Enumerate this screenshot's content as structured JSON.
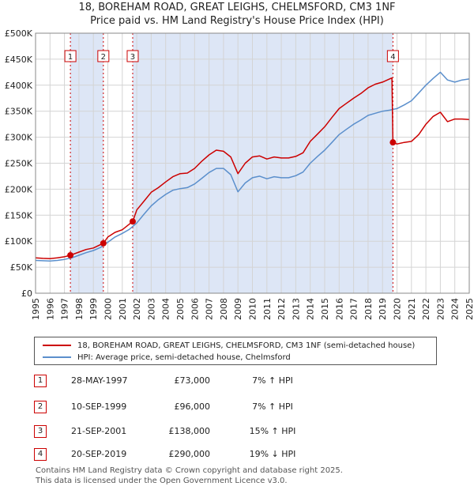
{
  "header": {
    "title": "18, BOREHAM ROAD, GREAT LEIGHS, CHELMSFORD, CM3 1NF",
    "subtitle": "Price paid vs. HM Land Registry's House Price Index (HPI)"
  },
  "colors": {
    "property": "#cc0000",
    "hpi": "#5b8fcc",
    "band": "#dde6f6",
    "grid": "#d4d4d4"
  },
  "chart_data": {
    "type": "line",
    "xlim": [
      1995,
      2025
    ],
    "ylim": [
      0,
      500000
    ],
    "ytick_values": [
      0,
      50000,
      100000,
      150000,
      200000,
      250000,
      300000,
      350000,
      400000,
      450000,
      500000
    ],
    "ytick_labels": [
      "£0",
      "£50K",
      "£100K",
      "£150K",
      "£200K",
      "£250K",
      "£300K",
      "£350K",
      "£400K",
      "£450K",
      "£500K"
    ],
    "xtick_labels": [
      "1995",
      "1996",
      "1997",
      "1998",
      "1999",
      "2000",
      "2001",
      "2002",
      "2003",
      "2004",
      "2005",
      "2006",
      "2007",
      "2008",
      "2009",
      "2010",
      "2011",
      "2012",
      "2013",
      "2014",
      "2015",
      "2016",
      "2017",
      "2018",
      "2019",
      "2020",
      "2021",
      "2022",
      "2023",
      "2024",
      "2025"
    ],
    "shaded_ranges": [
      [
        1997.41,
        1999.69
      ],
      [
        2001.72,
        2019.72
      ]
    ],
    "series": [
      {
        "name": "18, BOREHAM ROAD, GREAT LEIGHS, CHELMSFORD, CM3 1NF (semi-detached house)",
        "x": [
          1995,
          1995.5,
          1996,
          1996.5,
          1997,
          1997.41,
          1998,
          1998.5,
          1999,
          1999.69,
          2000,
          2000.5,
          2001,
          2001.72,
          2002,
          2002.5,
          2003,
          2003.5,
          2004,
          2004.5,
          2005,
          2005.5,
          2006,
          2006.5,
          2007,
          2007.5,
          2008,
          2008.5,
          2009,
          2009.5,
          2010,
          2010.5,
          2011,
          2011.5,
          2012,
          2012.5,
          2013,
          2013.5,
          2014,
          2014.5,
          2015,
          2015.5,
          2016,
          2016.5,
          2017,
          2017.5,
          2018,
          2018.5,
          2019,
          2019.65,
          2019.72,
          2020,
          2020.5,
          2021,
          2021.5,
          2022,
          2022.5,
          2023,
          2023.5,
          2024,
          2024.5,
          2025
        ],
        "values": [
          68000,
          67000,
          66500,
          68000,
          70000,
          73000,
          79000,
          84000,
          87000,
          96000,
          108000,
          117000,
          122000,
          138000,
          160000,
          177000,
          194000,
          203000,
          214000,
          224000,
          230000,
          231000,
          240000,
          254000,
          266000,
          275000,
          273000,
          262000,
          230000,
          250000,
          262000,
          264000,
          258000,
          262000,
          260000,
          260000,
          263000,
          270000,
          292000,
          306000,
          320000,
          338000,
          355000,
          365000,
          375000,
          384000,
          395000,
          402000,
          406000,
          414000,
          290000,
          287000,
          290000,
          292000,
          305000,
          325000,
          340000,
          348000,
          330000,
          335000,
          335000,
          334000
        ]
      },
      {
        "name": "HPI: Average price, semi-detached house, Chelmsford",
        "x": [
          1995,
          1995.5,
          1996,
          1996.5,
          1997,
          1997.5,
          1998,
          1998.5,
          1999,
          1999.5,
          2000,
          2000.5,
          2001,
          2001.5,
          2002,
          2002.5,
          2003,
          2003.5,
          2004,
          2004.5,
          2005,
          2005.5,
          2006,
          2006.5,
          2007,
          2007.5,
          2008,
          2008.5,
          2009,
          2009.5,
          2010,
          2010.5,
          2011,
          2011.5,
          2012,
          2012.5,
          2013,
          2013.5,
          2014,
          2014.5,
          2015,
          2015.5,
          2016,
          2016.5,
          2017,
          2017.5,
          2018,
          2018.5,
          2019,
          2019.5,
          2020,
          2020.5,
          2021,
          2021.5,
          2022,
          2022.5,
          2023,
          2023.5,
          2024,
          2024.5,
          2025
        ],
        "values": [
          63000,
          62500,
          62000,
          63000,
          65000,
          68000,
          73000,
          78000,
          82000,
          88000,
          98000,
          108000,
          115000,
          123000,
          135000,
          152000,
          168000,
          180000,
          190000,
          198000,
          201000,
          203000,
          210000,
          221000,
          232000,
          240000,
          240000,
          228000,
          195000,
          212000,
          222000,
          225000,
          220000,
          224000,
          222000,
          222000,
          226000,
          233000,
          250000,
          263000,
          275000,
          290000,
          305000,
          315000,
          325000,
          333000,
          342000,
          346000,
          350000,
          352000,
          355000,
          362000,
          370000,
          385000,
          400000,
          413000,
          425000,
          410000,
          406000,
          410000,
          412000
        ]
      }
    ],
    "sale_markers": [
      {
        "id": "1",
        "x": 1997.41,
        "value": 73000
      },
      {
        "id": "2",
        "x": 1999.69,
        "value": 96000
      },
      {
        "id": "3",
        "x": 2001.72,
        "value": 138000
      },
      {
        "id": "4",
        "x": 2019.72,
        "value": 290000
      }
    ]
  },
  "legend": {
    "property_label": "18, BOREHAM ROAD, GREAT LEIGHS, CHELMSFORD, CM3 1NF (semi-detached house)",
    "hpi_label": "HPI: Average price, semi-detached house, Chelmsford"
  },
  "transactions": [
    {
      "id": "1",
      "date": "28-MAY-1997",
      "price": "£73,000",
      "change": "7% ↑ HPI"
    },
    {
      "id": "2",
      "date": "10-SEP-1999",
      "price": "£96,000",
      "change": "7% ↑ HPI"
    },
    {
      "id": "3",
      "date": "21-SEP-2001",
      "price": "£138,000",
      "change": "15% ↑ HPI"
    },
    {
      "id": "4",
      "date": "20-SEP-2019",
      "price": "£290,000",
      "change": "19% ↓ HPI"
    }
  ],
  "footer": {
    "line1": "Contains HM Land Registry data © Crown copyright and database right 2025.",
    "line2": "This data is licensed under the Open Government Licence v3.0."
  }
}
